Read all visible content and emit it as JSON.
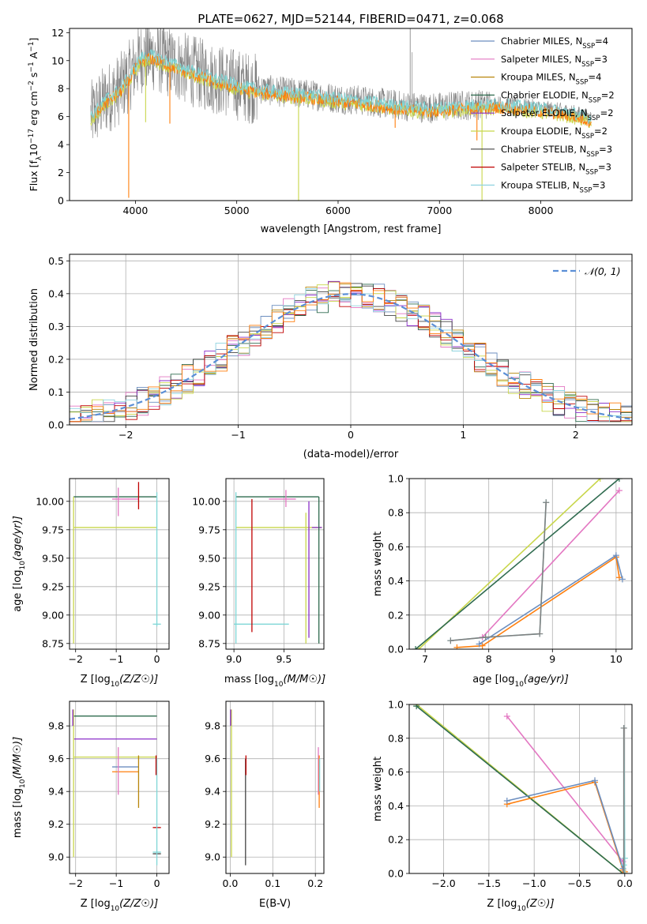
{
  "figure_title": "PLATE=0627, MJD=52144, FIBERID=0471, z=0.068",
  "colors": [
    "#6c8ebf",
    "#e377c2",
    "#b8860b",
    "#2f6b4f",
    "#8b2fc9",
    "#c8d64a",
    "#444444",
    "#c00000",
    "#8fd3e0",
    "#ff7f0e",
    "#7fd6d6",
    "#808080"
  ],
  "chart_data": [
    {
      "id": "spectrum",
      "type": "line",
      "title": "PLATE=0627, MJD=52144, FIBERID=0471, z=0.068",
      "xlabel": "wavelength [Angstrom, rest frame]",
      "ylabel": "Flux [f_λ 10^-17 erg cm^-2 s^-1 A^-1]",
      "xlim": [
        3350,
        8900
      ],
      "ylim": [
        0,
        12.3
      ],
      "xticks": [
        4000,
        5000,
        6000,
        7000,
        8000
      ],
      "yticks": [
        0,
        2,
        4,
        6,
        8,
        10,
        12
      ],
      "grid": false,
      "legend_position": "top-right",
      "legend": [
        {
          "label": "Chabrier MILES, N",
          "sub": "SSP",
          "suffix": "=4",
          "color": "#6c8ebf"
        },
        {
          "label": "Salpeter MILES, N",
          "sub": "SSP",
          "suffix": "=3",
          "color": "#e377c2"
        },
        {
          "label": "Kroupa MILES, N",
          "sub": "SSP",
          "suffix": "=4",
          "color": "#b8860b"
        },
        {
          "label": "Chabrier ELODIE, N",
          "sub": "SSP",
          "suffix": "=2",
          "color": "#2f6b4f"
        },
        {
          "label": "Salpeter ELODIE, N",
          "sub": "SSP",
          "suffix": "=2",
          "color": "#8b2fc9"
        },
        {
          "label": "Kroupa ELODIE, N",
          "sub": "SSP",
          "suffix": "=2",
          "color": "#c8d64a"
        },
        {
          "label": "Chabrier STELIB, N",
          "sub": "SSP",
          "suffix": "=3",
          "color": "#444444"
        },
        {
          "label": "Salpeter STELIB, N",
          "sub": "SSP",
          "suffix": "=3",
          "color": "#c00000"
        },
        {
          "label": "Kroupa STELIB, N",
          "sub": "SSP",
          "suffix": "=3",
          "color": "#8fd3e0"
        }
      ],
      "continuum": [
        [
          3560,
          6.0
        ],
        [
          3700,
          7.2
        ],
        [
          3850,
          8.0
        ],
        [
          3950,
          9.0
        ],
        [
          4050,
          10.2
        ],
        [
          4150,
          10.4
        ],
        [
          4300,
          10.0
        ],
        [
          4500,
          9.4
        ],
        [
          4800,
          8.7
        ],
        [
          5100,
          8.1
        ],
        [
          5400,
          7.8
        ],
        [
          5700,
          7.6
        ],
        [
          6000,
          7.3
        ],
        [
          6300,
          7.1
        ],
        [
          6600,
          6.8
        ],
        [
          6900,
          6.6
        ],
        [
          7200,
          6.8
        ],
        [
          7600,
          6.9
        ],
        [
          8000,
          6.6
        ],
        [
          8300,
          6.3
        ],
        [
          8500,
          5.9
        ]
      ],
      "absorption_spikes": [
        [
          3934,
          0.2
        ],
        [
          4101,
          5.6
        ],
        [
          4340,
          5.5
        ],
        [
          5610,
          0.0
        ],
        [
          6563,
          5.2
        ],
        [
          7420,
          0.0
        ],
        [
          7370,
          4.3
        ]
      ]
    },
    {
      "id": "residuals",
      "type": "line",
      "xlabel": "(data-model)/error",
      "ylabel": "Normed distribution",
      "xlim": [
        -2.5,
        2.5
      ],
      "ylim": [
        0,
        0.52
      ],
      "xticks": [
        -2,
        -1,
        0,
        1,
        2
      ],
      "yticks": [
        0.0,
        0.1,
        0.2,
        0.3,
        0.4,
        0.5
      ],
      "grid": true,
      "legend_position": "top-right",
      "legend": [
        {
          "label": "𝒩(0, 1)",
          "color": "#5b8fd6"
        }
      ],
      "reference_curve": "normal(0,1)",
      "bin_width": 0.1
    },
    {
      "id": "age-vs-Z",
      "type": "scatter",
      "xlabel": "Z [log10(Z/Z☉)]",
      "ylabel": "age [log10(age/yr)]",
      "xlim": [
        -2.15,
        0.3
      ],
      "ylim": [
        8.7,
        10.2
      ],
      "xticks": [
        -2,
        -1,
        0
      ],
      "yticks": [
        8.75,
        9.0,
        9.25,
        9.5,
        9.75,
        10.0
      ],
      "grid": true,
      "hlines": [
        {
          "y": 10.04,
          "x": [
            -2.05,
            0.0
          ],
          "color": "#2f6b4f"
        },
        {
          "y": 9.77,
          "x": [
            -2.05,
            0.0
          ],
          "color": "#c8d64a"
        },
        {
          "y": 10.02,
          "x": [
            -1.1,
            -0.45
          ],
          "color": "#e377c2"
        },
        {
          "y": 8.92,
          "x": [
            -0.1,
            0.1
          ],
          "color": "#7fd6d6"
        }
      ],
      "vlines": [
        {
          "x": -2.05,
          "y": [
            8.75,
            10.04
          ],
          "color": "#c8d64a"
        },
        {
          "x": 0.0,
          "y": [
            8.9,
            10.08
          ],
          "color": "#7fd6d6"
        },
        {
          "x": -0.95,
          "y": [
            9.87,
            10.12
          ],
          "color": "#e377c2"
        },
        {
          "x": -0.45,
          "y": [
            9.93,
            10.17
          ],
          "color": "#c00000"
        }
      ]
    },
    {
      "id": "age-vs-mass",
      "type": "scatter",
      "xlabel": "mass [log10(M/M☉)]",
      "ylabel": "",
      "xlim": [
        8.92,
        9.9
      ],
      "ylim": [
        8.7,
        10.2
      ],
      "xticks": [
        9.0,
        9.5
      ],
      "yticks": [
        8.75,
        9.0,
        9.25,
        9.5,
        9.75,
        10.0
      ],
      "grid": true,
      "hlines": [
        {
          "y": 10.04,
          "x": [
            9.02,
            9.85
          ],
          "color": "#2f6b4f"
        },
        {
          "y": 9.77,
          "x": [
            9.02,
            9.88
          ],
          "color": "#c8d64a"
        },
        {
          "y": 10.02,
          "x": [
            9.35,
            9.62
          ],
          "color": "#e377c2"
        },
        {
          "y": 8.92,
          "x": [
            9.0,
            9.55
          ],
          "color": "#7fd6d6"
        },
        {
          "y": 9.77,
          "x": [
            9.78,
            9.88
          ],
          "color": "#8b2fc9"
        }
      ],
      "vlines": [
        {
          "x": 9.02,
          "y": [
            8.75,
            10.08
          ],
          "color": "#7fd6d6"
        },
        {
          "x": 9.18,
          "y": [
            8.85,
            10.02
          ],
          "color": "#c00000"
        },
        {
          "x": 9.72,
          "y": [
            8.75,
            9.9
          ],
          "color": "#c8d64a"
        },
        {
          "x": 9.75,
          "y": [
            8.8,
            10.0
          ],
          "color": "#8b2fc9"
        },
        {
          "x": 9.85,
          "y": [
            8.75,
            10.04
          ],
          "color": "#2f6b4f"
        },
        {
          "x": 9.52,
          "y": [
            9.95,
            10.1
          ],
          "color": "#e377c2"
        }
      ]
    },
    {
      "id": "weight-vs-age",
      "type": "line",
      "xlabel": "age [log10(age/yr)]",
      "ylabel": "mass weight",
      "xlim": [
        6.75,
        10.25
      ],
      "ylim": [
        0,
        1.0
      ],
      "xticks": [
        7,
        8,
        9,
        10
      ],
      "yticks": [
        0.0,
        0.2,
        0.4,
        0.6,
        0.8,
        1.0
      ],
      "grid": true,
      "series": [
        {
          "color": "#c8d64a",
          "x": [
            6.9,
            9.75
          ],
          "y": [
            0.0,
            1.0
          ]
        },
        {
          "color": "#2f6b4f",
          "x": [
            6.85,
            10.05
          ],
          "y": [
            0.0,
            1.0
          ]
        },
        {
          "color": "#e377c2",
          "x": [
            7.9,
            10.05
          ],
          "y": [
            0.07,
            0.93
          ]
        },
        {
          "color": "#ff7f0e",
          "x": [
            7.5,
            7.9,
            10.0,
            10.05
          ],
          "y": [
            0.01,
            0.02,
            0.54,
            0.42
          ]
        },
        {
          "color": "#6c8ebf",
          "x": [
            7.85,
            10.0,
            10.1
          ],
          "y": [
            0.03,
            0.55,
            0.41
          ]
        },
        {
          "color": "#7fd6d6",
          "x": [
            7.4,
            7.95,
            8.8,
            8.9
          ],
          "y": [
            0.05,
            0.07,
            0.09,
            0.86
          ]
        },
        {
          "color": "#808080",
          "x": [
            7.4,
            7.95,
            8.8,
            8.9
          ],
          "y": [
            0.05,
            0.07,
            0.09,
            0.86
          ]
        }
      ]
    },
    {
      "id": "mass-vs-Z",
      "type": "scatter",
      "xlabel": "Z [log10(Z/Z☉)]",
      "ylabel": "mass [log10(M/M☉)]",
      "xlim": [
        -2.15,
        0.3
      ],
      "ylim": [
        8.9,
        9.95
      ],
      "xticks": [
        -2,
        -1,
        0
      ],
      "yticks": [
        9.0,
        9.2,
        9.4,
        9.6,
        9.8
      ],
      "grid": true,
      "hlines": [
        {
          "y": 9.86,
          "x": [
            -2.05,
            0.0
          ],
          "color": "#2f6b4f"
        },
        {
          "y": 9.72,
          "x": [
            -2.05,
            0.0
          ],
          "color": "#8b2fc9"
        },
        {
          "y": 9.61,
          "x": [
            -2.05,
            0.0
          ],
          "color": "#c8d64a"
        },
        {
          "y": 9.55,
          "x": [
            -1.1,
            -0.45
          ],
          "color": "#6c8ebf"
        },
        {
          "y": 9.52,
          "x": [
            -1.1,
            -0.45
          ],
          "color": "#ff7f0e"
        },
        {
          "y": 9.18,
          "x": [
            -0.1,
            0.1
          ],
          "color": "#c00000"
        },
        {
          "y": 9.02,
          "x": [
            -0.1,
            0.1
          ],
          "color": "#444444"
        },
        {
          "y": 9.03,
          "x": [
            -0.1,
            0.1
          ],
          "color": "#7fd6d6"
        }
      ],
      "vlines": [
        {
          "x": -2.05,
          "y": [
            9.0,
            9.9
          ],
          "color": "#c8d64a"
        },
        {
          "x": -2.07,
          "y": [
            9.8,
            9.9
          ],
          "color": "#8b2fc9"
        },
        {
          "x": -0.95,
          "y": [
            9.38,
            9.67
          ],
          "color": "#e377c2"
        },
        {
          "x": -0.45,
          "y": [
            9.3,
            9.62
          ],
          "color": "#b8860b"
        },
        {
          "x": 0.0,
          "y": [
            8.95,
            9.6
          ],
          "color": "#7fd6d6"
        },
        {
          "x": -0.02,
          "y": [
            9.5,
            9.62
          ],
          "color": "#c00000"
        }
      ]
    },
    {
      "id": "mass-vs-EBV",
      "type": "scatter",
      "xlabel": "E(B-V)",
      "ylabel": "",
      "xlim": [
        -0.01,
        0.22
      ],
      "ylim": [
        8.9,
        9.95
      ],
      "xticks": [
        0.0,
        0.1,
        0.2
      ],
      "yticks": [
        9.0,
        9.2,
        9.4,
        9.6,
        9.8
      ],
      "grid": true,
      "hlines": [],
      "vlines": [
        {
          "x": 0.003,
          "y": [
            9.0,
            9.9
          ],
          "color": "#c8d64a"
        },
        {
          "x": 0.001,
          "y": [
            9.8,
            9.9
          ],
          "color": "#8b2fc9"
        },
        {
          "x": 0.036,
          "y": [
            8.95,
            9.6
          ],
          "color": "#444444"
        },
        {
          "x": 0.037,
          "y": [
            9.5,
            9.62
          ],
          "color": "#c00000"
        },
        {
          "x": 0.207,
          "y": [
            9.38,
            9.67
          ],
          "color": "#e377c2"
        },
        {
          "x": 0.209,
          "y": [
            9.3,
            9.62
          ],
          "color": "#ff7f0e"
        },
        {
          "x": 0.21,
          "y": [
            9.4,
            9.6
          ],
          "color": "#7fd6d6"
        }
      ]
    },
    {
      "id": "weight-vs-Z",
      "type": "line",
      "xlabel": "Z [log10(Z☉)]",
      "ylabel": "mass weight",
      "xlim": [
        -2.38,
        0.08
      ],
      "ylim": [
        0,
        1.0
      ],
      "xticks": [
        -2.0,
        -1.5,
        -1.0,
        -0.5,
        0.0
      ],
      "yticks": [
        0.0,
        0.2,
        0.4,
        0.6,
        0.8,
        1.0
      ],
      "grid": true,
      "series": [
        {
          "color": "#c8d64a",
          "x": [
            -2.3,
            -0.02
          ],
          "y": [
            1.0,
            0.0
          ]
        },
        {
          "color": "#2f6b4f",
          "x": [
            -2.3,
            -0.02
          ],
          "y": [
            0.99,
            0.0
          ]
        },
        {
          "color": "#e377c2",
          "x": [
            -1.3,
            -0.02
          ],
          "y": [
            0.93,
            0.07
          ]
        },
        {
          "color": "#ff7f0e",
          "x": [
            -1.3,
            -0.33,
            -0.02,
            0.0
          ],
          "y": [
            0.41,
            0.54,
            0.02,
            0.01
          ]
        },
        {
          "color": "#6c8ebf",
          "x": [
            -1.3,
            -0.33,
            -0.02
          ],
          "y": [
            0.43,
            0.55,
            0.03
          ]
        },
        {
          "color": "#7fd6d6",
          "x": [
            -0.01,
            -0.01,
            0.0,
            0.0
          ],
          "y": [
            0.05,
            0.86,
            0.09,
            0.0
          ]
        },
        {
          "color": "#808080",
          "x": [
            -0.01,
            -0.01
          ],
          "y": [
            0.0,
            0.86
          ]
        }
      ]
    }
  ]
}
